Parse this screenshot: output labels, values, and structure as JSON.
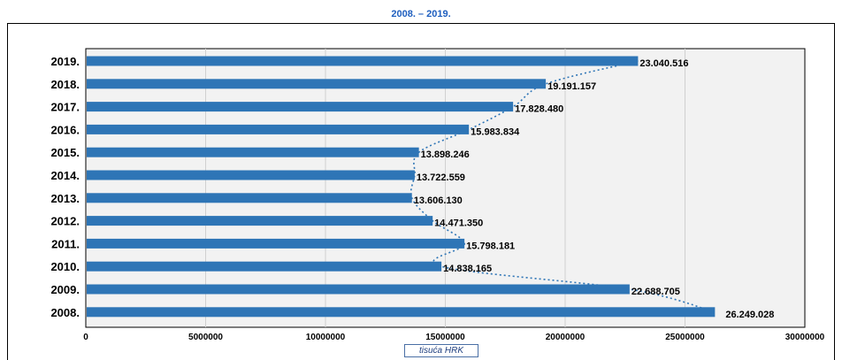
{
  "title": "2008. – 2019.",
  "chart_data": {
    "type": "bar",
    "orientation": "horizontal",
    "categories": [
      "2019.",
      "2018.",
      "2017.",
      "2016.",
      "2015.",
      "2014.",
      "2013.",
      "2012.",
      "2011.",
      "2010.",
      "2009.",
      "2008."
    ],
    "values": [
      23040516,
      19191157,
      17828480,
      15983834,
      13898246,
      13722559,
      13606130,
      14471350,
      15798181,
      14838165,
      22688705,
      26249028
    ],
    "value_labels": [
      "23.040.516",
      "19.191.157",
      "17.828.480",
      "15.983.834",
      "13.898.246",
      "13.722.559",
      "13.606.130",
      "14.471.350",
      "15.798.181",
      "14.838.165",
      "22.688.705",
      "26.249.028"
    ],
    "xlabel": "tisuća HRK",
    "xlim": [
      0,
      30000000
    ],
    "xticks": [
      0,
      5000000,
      10000000,
      15000000,
      20000000,
      25000000,
      30000000
    ],
    "xtick_labels": [
      "0",
      "5000000",
      "10000000",
      "15000000",
      "20000000",
      "25000000",
      "30000000"
    ],
    "trendline": "dotted curve",
    "grid": "vertical",
    "bar_color": "#2e75b6",
    "trend_color": "#2e75b6",
    "plot_background": "#f2f2f2"
  }
}
